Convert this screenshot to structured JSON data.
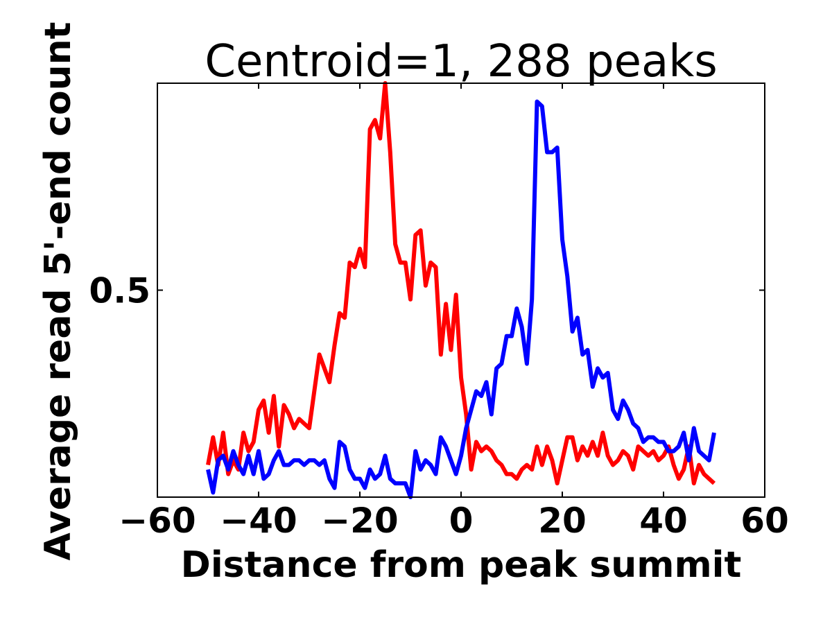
{
  "chart_data": {
    "type": "line",
    "title": "Centroid=1, 288 peaks",
    "xlabel": "Distance from peak summit",
    "ylabel": "Average read 5'-end count",
    "xlim": [
      -60,
      60
    ],
    "ylim": [
      0.05,
      0.95
    ],
    "xticks": [
      -60,
      -40,
      -20,
      0,
      20,
      40,
      60
    ],
    "xtick_labels": [
      "−60",
      "−40",
      "−20",
      "0",
      "20",
      "40",
      "60"
    ],
    "yticks": [
      0.5
    ],
    "ytick_labels": [
      "0.5"
    ],
    "grid": false,
    "legend": "none",
    "x": [
      -50,
      -49,
      -48,
      -47,
      -46,
      -45,
      -44,
      -43,
      -42,
      -41,
      -40,
      -39,
      -38,
      -37,
      -36,
      -35,
      -34,
      -33,
      -32,
      -31,
      -30,
      -29,
      -28,
      -27,
      -26,
      -25,
      -24,
      -23,
      -22,
      -21,
      -20,
      -19,
      -18,
      -17,
      -16,
      -15,
      -14,
      -13,
      -12,
      -11,
      -10,
      -9,
      -8,
      -7,
      -6,
      -5,
      -4,
      -3,
      -2,
      -1,
      0,
      1,
      2,
      3,
      4,
      5,
      6,
      7,
      8,
      9,
      10,
      11,
      12,
      13,
      14,
      15,
      16,
      17,
      18,
      19,
      20,
      21,
      22,
      23,
      24,
      25,
      26,
      27,
      28,
      29,
      30,
      31,
      32,
      33,
      34,
      35,
      36,
      37,
      38,
      39,
      40,
      41,
      42,
      43,
      44,
      45,
      46,
      47,
      48,
      49,
      50
    ],
    "series": [
      {
        "color": "#ff0000",
        "values": [
          0.12,
          0.18,
          0.12,
          0.19,
          0.1,
          0.13,
          0.11,
          0.19,
          0.15,
          0.17,
          0.24,
          0.26,
          0.19,
          0.27,
          0.16,
          0.25,
          0.23,
          0.2,
          0.22,
          0.21,
          0.2,
          0.28,
          0.36,
          0.33,
          0.3,
          0.38,
          0.45,
          0.44,
          0.56,
          0.55,
          0.59,
          0.55,
          0.85,
          0.87,
          0.83,
          0.95,
          0.8,
          0.6,
          0.56,
          0.56,
          0.48,
          0.62,
          0.63,
          0.51,
          0.56,
          0.55,
          0.36,
          0.47,
          0.37,
          0.49,
          0.31,
          0.23,
          0.11,
          0.17,
          0.15,
          0.16,
          0.15,
          0.13,
          0.12,
          0.1,
          0.1,
          0.09,
          0.11,
          0.12,
          0.11,
          0.16,
          0.12,
          0.16,
          0.13,
          0.08,
          0.13,
          0.18,
          0.18,
          0.13,
          0.16,
          0.14,
          0.17,
          0.14,
          0.19,
          0.14,
          0.12,
          0.13,
          0.15,
          0.14,
          0.11,
          0.16,
          0.15,
          0.14,
          0.15,
          0.13,
          0.14,
          0.16,
          0.12,
          0.09,
          0.11,
          0.16,
          0.08,
          0.12,
          0.1,
          0.09,
          0.08
        ]
      },
      {
        "color": "#0000ff",
        "values": [
          0.11,
          0.06,
          0.13,
          0.14,
          0.11,
          0.15,
          0.12,
          0.1,
          0.14,
          0.1,
          0.15,
          0.09,
          0.1,
          0.13,
          0.15,
          0.12,
          0.12,
          0.13,
          0.13,
          0.12,
          0.13,
          0.13,
          0.12,
          0.13,
          0.09,
          0.07,
          0.17,
          0.16,
          0.11,
          0.09,
          0.09,
          0.07,
          0.11,
          0.09,
          0.1,
          0.14,
          0.09,
          0.08,
          0.08,
          0.08,
          0.05,
          0.15,
          0.11,
          0.13,
          0.12,
          0.1,
          0.18,
          0.16,
          0.13,
          0.1,
          0.14,
          0.2,
          0.24,
          0.28,
          0.27,
          0.3,
          0.23,
          0.33,
          0.34,
          0.4,
          0.4,
          0.46,
          0.42,
          0.34,
          0.48,
          0.91,
          0.9,
          0.8,
          0.8,
          0.81,
          0.61,
          0.53,
          0.41,
          0.44,
          0.36,
          0.37,
          0.29,
          0.33,
          0.31,
          0.32,
          0.24,
          0.22,
          0.26,
          0.24,
          0.21,
          0.2,
          0.17,
          0.18,
          0.18,
          0.17,
          0.17,
          0.15,
          0.15,
          0.16,
          0.19,
          0.13,
          0.2,
          0.15,
          0.14,
          0.13,
          0.19
        ]
      }
    ]
  }
}
